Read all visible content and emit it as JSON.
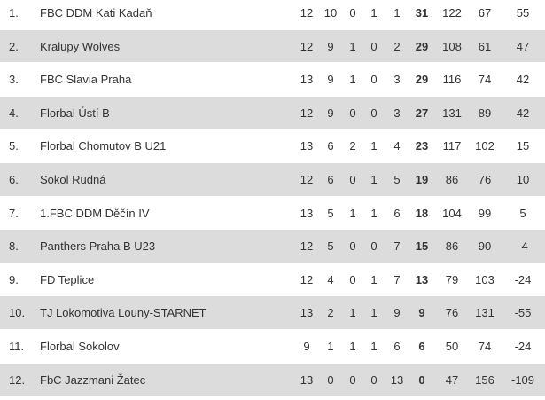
{
  "table": {
    "rows": [
      [
        "1.",
        "FBC DDM Kati Kadaň",
        "12",
        "10",
        "0",
        "1",
        "1",
        "31",
        "122",
        "67",
        "55"
      ],
      [
        "2.",
        "Kralupy Wolves",
        "12",
        "9",
        "1",
        "0",
        "2",
        "29",
        "108",
        "61",
        "47"
      ],
      [
        "3.",
        "FBC Slavia Praha",
        "13",
        "9",
        "1",
        "0",
        "3",
        "29",
        "116",
        "74",
        "42"
      ],
      [
        "4.",
        "Florbal Ústí B",
        "12",
        "9",
        "0",
        "0",
        "3",
        "27",
        "131",
        "89",
        "42"
      ],
      [
        "5.",
        "Florbal Chomutov B U21",
        "13",
        "6",
        "2",
        "1",
        "4",
        "23",
        "117",
        "102",
        "15"
      ],
      [
        "6.",
        "Sokol Rudná",
        "12",
        "6",
        "0",
        "1",
        "5",
        "19",
        "86",
        "76",
        "10"
      ],
      [
        "7.",
        "1.FBC DDM Děčín IV",
        "13",
        "5",
        "1",
        "1",
        "6",
        "18",
        "104",
        "99",
        "5"
      ],
      [
        "8.",
        "Panthers Praha B U23",
        "12",
        "5",
        "0",
        "0",
        "7",
        "15",
        "86",
        "90",
        "-4"
      ],
      [
        "9.",
        "FD Teplice",
        "12",
        "4",
        "0",
        "1",
        "7",
        "13",
        "79",
        "103",
        "-24"
      ],
      [
        "10.",
        "TJ Lokomotiva Louny-STARNET",
        "13",
        "2",
        "1",
        "1",
        "9",
        "9",
        "76",
        "131",
        "-55"
      ],
      [
        "11.",
        "Florbal Sokolov",
        "9",
        "1",
        "1",
        "1",
        "6",
        "6",
        "50",
        "74",
        "-24"
      ],
      [
        "12.",
        "FbC Jazzmani Žatec",
        "13",
        "0",
        "0",
        "0",
        "13",
        "0",
        "47",
        "156",
        "-109"
      ]
    ]
  }
}
